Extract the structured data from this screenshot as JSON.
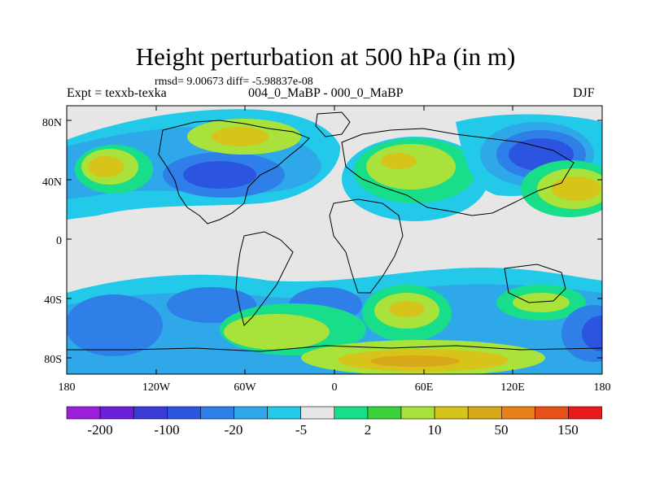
{
  "title": "Height perturbation at 500 hPa (in m)",
  "stats": "rmsd= 9.00673 diff= -5.98837e-08",
  "subtitle": "Expt = texxb-texka",
  "center_label": "004_0_MaBP - 000_0_MaBP",
  "season": "DJF",
  "y_ticks": [
    "80N",
    "40N",
    "0",
    "40S",
    "80S"
  ],
  "x_ticks": [
    "180",
    "120W",
    "60W",
    "0",
    "60E",
    "120E",
    "180"
  ],
  "colorbar": {
    "colors": [
      "#9b1fd8",
      "#6b1fd8",
      "#3b3bd8",
      "#2b55e0",
      "#2f7fe8",
      "#2fa8ea",
      "#22c9e8",
      "#e6e6e6",
      "#18de8a",
      "#3ad23a",
      "#a8e23a",
      "#d6c41a",
      "#d8a81a",
      "#e87f1a",
      "#e8501a",
      "#e81a1a"
    ],
    "labels": [
      "-200",
      "-100",
      "-20",
      "-5",
      "2",
      "10",
      "50",
      "150"
    ]
  }
}
